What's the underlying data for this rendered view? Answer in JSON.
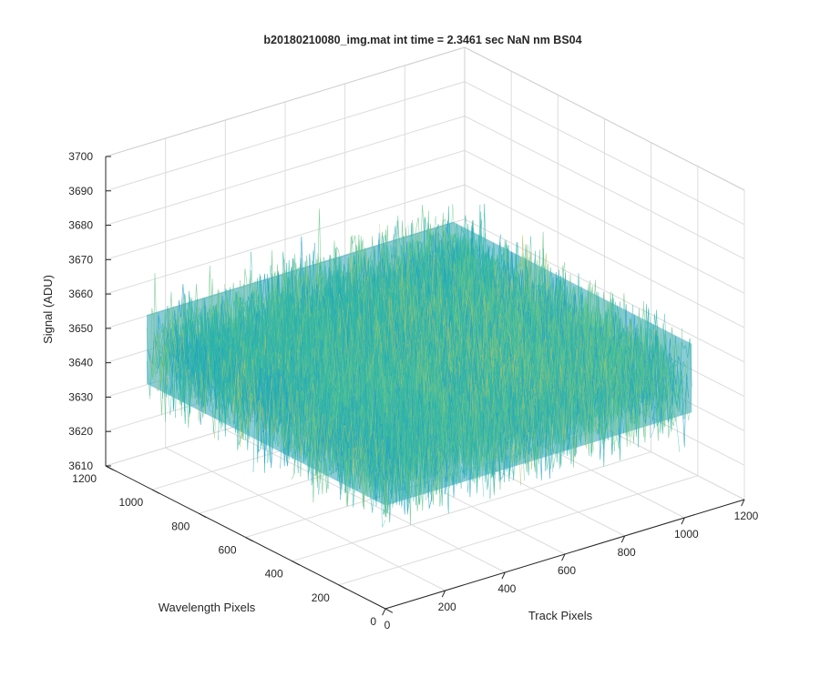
{
  "chart_data": {
    "type": "surface3d",
    "title": "b20180210080_img.mat int time = 2.3461 sec  NaN nm BS04",
    "xlabel": "Track Pixels",
    "ylabel": "Wavelength Pixels",
    "zlabel": "Signal (ADU)",
    "xlim": [
      0,
      1200
    ],
    "ylim": [
      0,
      1200
    ],
    "zlim": [
      3610,
      3700
    ],
    "xticks": [
      "0",
      "200",
      "400",
      "600",
      "800",
      "1000",
      "1200"
    ],
    "yticks": [
      "0",
      "200",
      "400",
      "600",
      "800",
      "1000",
      "1200"
    ],
    "zticks": [
      "3610",
      "3620",
      "3630",
      "3640",
      "3650",
      "3660",
      "3670",
      "3680",
      "3690",
      "3700"
    ],
    "data_extent": {
      "x": [
        0,
        1024
      ],
      "y": [
        0,
        1024
      ]
    },
    "signal": {
      "mean": 3650,
      "min": 3612,
      "max": 3692
    },
    "grid": true,
    "colormap": [
      "#0072BD",
      "#1F9BD0",
      "#2FB5A8",
      "#6CC68B",
      "#B8C46A",
      "#E6C25A"
    ]
  }
}
